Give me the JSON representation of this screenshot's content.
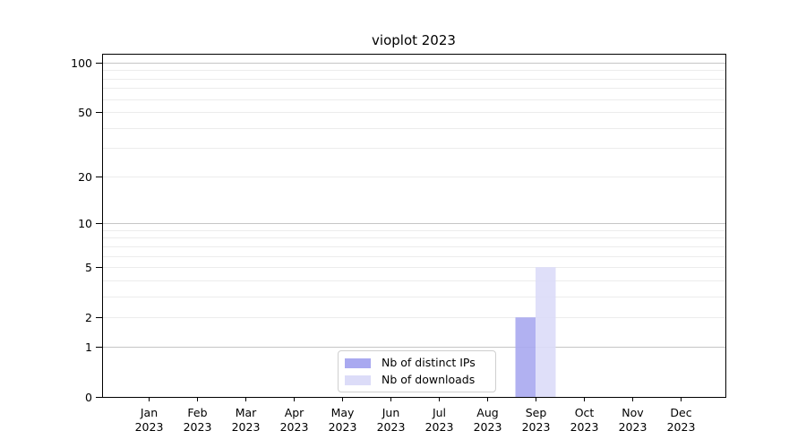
{
  "title": "vioplot 2023",
  "legend": {
    "items": [
      {
        "label": "Nb of distinct IPs",
        "color": "#a9a9f0"
      },
      {
        "label": "Nb of downloads",
        "color": "#dcdcf8"
      }
    ]
  },
  "colors": {
    "axis": "#000000",
    "grid_major": "#c6c6c6",
    "grid_minor": "#ececec",
    "legend_border": "#cfcfcf",
    "background": "#ffffff"
  },
  "chart_data": {
    "type": "bar",
    "title": "vioplot 2023",
    "categories": [
      "Jan",
      "Feb",
      "Mar",
      "Apr",
      "May",
      "Jun",
      "Jul",
      "Aug",
      "Sep",
      "Oct",
      "Nov",
      "Dec"
    ],
    "year": "2023",
    "series": [
      {
        "name": "Nb of distinct IPs",
        "color": "#a9a9f0",
        "values": [
          0,
          0,
          0,
          0,
          0,
          0,
          0,
          0,
          2,
          0,
          0,
          0
        ]
      },
      {
        "name": "Nb of downloads",
        "color": "#dcdcf8",
        "values": [
          0,
          0,
          0,
          0,
          0,
          0,
          0,
          0,
          5,
          0,
          0,
          0
        ]
      }
    ],
    "xlabel": "",
    "ylabel": "",
    "yscale": "log1p",
    "ylim": [
      0,
      114
    ],
    "yticks": [
      0,
      1,
      2,
      5,
      10,
      20,
      50,
      100
    ],
    "grid": {
      "major_lines": [
        1,
        10,
        100
      ],
      "minor_lines": [
        2,
        3,
        4,
        5,
        6,
        7,
        8,
        9,
        20,
        30,
        40,
        50,
        60,
        70,
        80,
        90
      ]
    },
    "legend_position": "inside lower center"
  }
}
